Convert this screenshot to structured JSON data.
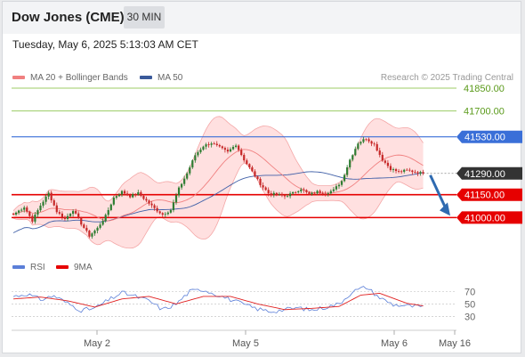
{
  "header": {
    "title": "Dow Jones (CME)",
    "timeframe": "30 MIN"
  },
  "datetime": "Tuesday, May 6, 2025 5:13:03 AM CET",
  "legend": {
    "ma20": "MA 20 + Bollinger Bands",
    "ma50": "MA 50",
    "copyright": "Research © 2025 Trading Central"
  },
  "rsi_legend": {
    "rsi": "RSI",
    "ma9": "9MA"
  },
  "colors": {
    "ma20": "#f08080",
    "ma50": "#4060a8",
    "candle_up": "#2e7d32",
    "candle_down": "#c62828",
    "resistance": "#9ccc65",
    "pivot": "#3a6fd8",
    "support": "#e60000",
    "arrow": "#2f6ab0",
    "bands": "#ffd6d6"
  },
  "chart_data": {
    "type": "candlestick",
    "ylim": [
      40780,
      41920
    ],
    "x_ticks": [
      "May 2",
      "May 5",
      "May 6",
      "May 16"
    ],
    "levels": [
      {
        "label": "41850.00",
        "value": 41850,
        "kind": "resistance"
      },
      {
        "label": "41700.00",
        "value": 41700,
        "kind": "resistance"
      },
      {
        "label": "41530.00",
        "value": 41530,
        "kind": "pivot"
      },
      {
        "label": "41290.00",
        "value": 41290,
        "kind": "last"
      },
      {
        "label": "41150.00",
        "value": 41150,
        "kind": "support"
      },
      {
        "label": "41000.00",
        "value": 41000,
        "kind": "support"
      }
    ],
    "price_anchors": [
      [
        0,
        41020
      ],
      [
        4,
        41070
      ],
      [
        7,
        40980
      ],
      [
        10,
        41080
      ],
      [
        13,
        41160
      ],
      [
        16,
        41040
      ],
      [
        19,
        40990
      ],
      [
        22,
        41050
      ],
      [
        25,
        40960
      ],
      [
        28,
        40880
      ],
      [
        31,
        40930
      ],
      [
        34,
        41010
      ],
      [
        37,
        41130
      ],
      [
        40,
        41170
      ],
      [
        43,
        41140
      ],
      [
        46,
        41160
      ],
      [
        49,
        41110
      ],
      [
        52,
        41060
      ],
      [
        55,
        41020
      ],
      [
        58,
        41050
      ],
      [
        61,
        41190
      ],
      [
        64,
        41290
      ],
      [
        67,
        41410
      ],
      [
        70,
        41470
      ],
      [
        73,
        41490
      ],
      [
        76,
        41460
      ],
      [
        79,
        41430
      ],
      [
        82,
        41480
      ],
      [
        85,
        41380
      ],
      [
        88,
        41300
      ],
      [
        91,
        41220
      ],
      [
        94,
        41160
      ],
      [
        97,
        41150
      ],
      [
        100,
        41140
      ],
      [
        103,
        41160
      ],
      [
        106,
        41190
      ],
      [
        109,
        41150
      ],
      [
        112,
        41170
      ],
      [
        115,
        41160
      ],
      [
        118,
        41180
      ],
      [
        121,
        41240
      ],
      [
        124,
        41380
      ],
      [
        127,
        41490
      ],
      [
        130,
        41520
      ],
      [
        133,
        41480
      ],
      [
        136,
        41380
      ],
      [
        139,
        41320
      ],
      [
        142,
        41300
      ],
      [
        145,
        41310
      ],
      [
        148,
        41300
      ],
      [
        151,
        41290
      ]
    ],
    "rsi": {
      "ylim": [
        18,
        86
      ],
      "ticks": [
        70,
        50,
        30
      ],
      "anchors": [
        [
          0,
          62
        ],
        [
          5,
          66
        ],
        [
          10,
          57
        ],
        [
          15,
          63
        ],
        [
          20,
          51
        ],
        [
          25,
          40
        ],
        [
          30,
          43
        ],
        [
          35,
          56
        ],
        [
          40,
          68
        ],
        [
          45,
          62
        ],
        [
          50,
          55
        ],
        [
          55,
          41
        ],
        [
          60,
          50
        ],
        [
          65,
          70
        ],
        [
          70,
          73
        ],
        [
          75,
          65
        ],
        [
          80,
          57
        ],
        [
          85,
          49
        ],
        [
          90,
          42
        ],
        [
          95,
          38
        ],
        [
          100,
          41
        ],
        [
          105,
          44
        ],
        [
          110,
          40
        ],
        [
          115,
          45
        ],
        [
          120,
          50
        ],
        [
          125,
          70
        ],
        [
          130,
          77
        ],
        [
          135,
          60
        ],
        [
          140,
          49
        ],
        [
          145,
          47
        ],
        [
          151,
          45
        ]
      ],
      "ma9_anchors": [
        [
          0,
          58
        ],
        [
          10,
          61
        ],
        [
          20,
          55
        ],
        [
          30,
          45
        ],
        [
          40,
          58
        ],
        [
          50,
          62
        ],
        [
          60,
          50
        ],
        [
          70,
          62
        ],
        [
          80,
          62
        ],
        [
          90,
          50
        ],
        [
          100,
          41
        ],
        [
          110,
          43
        ],
        [
          120,
          46
        ],
        [
          128,
          64
        ],
        [
          135,
          67
        ],
        [
          145,
          51
        ],
        [
          151,
          47
        ]
      ]
    }
  }
}
